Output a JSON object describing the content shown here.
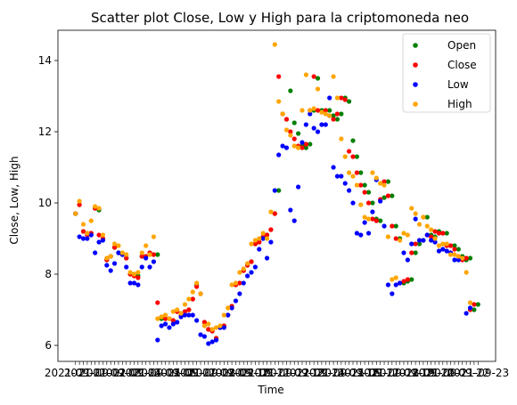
{
  "chart_data": {
    "type": "scatter",
    "title": "Scatter plot Close, Low y High para la criptomoneda neo",
    "xlabel": "Time",
    "ylabel": "Close, Low, High",
    "ylim": [
      5.55,
      14.85
    ],
    "yticks": [
      6,
      8,
      10,
      12,
      14
    ],
    "x_tick_labels": [
      "2021-09-01",
      "2021-09-02",
      "2021-09-03",
      "2021-09-04",
      "2021-09-05",
      "2021-09-06",
      "2021-09-07",
      "2021-09-08",
      "2021-09-09",
      "2021-09-10",
      "2021-09-11",
      "2021-09-12",
      "2021-09-13",
      "2021-09-14",
      "2021-09-15",
      "2021-09-16",
      "2021-09-17",
      "2021-09-18",
      "2021-09-19",
      "2021-09-20",
      "2021-09-21",
      "2021-09-22",
      "2021-09-23"
    ],
    "legend_position": "top-right",
    "grid": false,
    "series": [
      {
        "name": "Open",
        "color": "#008000",
        "values": [
          9.7,
          9.95,
          9.2,
          9.15,
          9.15,
          9.85,
          9.8,
          9.0,
          8.4,
          8.5,
          8.75,
          8.6,
          8.55,
          8.45,
          8.0,
          8.0,
          7.95,
          8.5,
          8.5,
          8.6,
          8.55,
          8.55,
          6.75,
          6.75,
          6.75,
          6.7,
          6.95,
          6.85,
          6.95,
          7.0,
          7.3,
          7.7,
          7.45,
          6.65,
          6.45,
          6.4,
          6.2,
          6.5,
          6.55,
          6.85,
          7.1,
          7.7,
          7.75,
          8.1,
          8.25,
          8.35,
          8.85,
          8.9,
          9.05,
          9.1,
          9.25,
          9.7,
          10.35,
          12.5,
          12.35,
          13.15,
          12.25,
          11.95,
          11.6,
          11.55,
          11.65,
          12.6,
          13.5,
          12.6,
          12.6,
          12.6,
          12.45,
          12.35,
          12.5,
          12.95,
          12.85,
          11.75,
          11.3,
          10.85,
          10.5,
          10.3,
          10.0,
          9.55,
          9.5,
          10.15,
          10.6,
          10.2,
          9.35,
          9.0,
          7.75,
          7.8,
          7.85,
          8.6,
          8.85,
          8.95,
          9.6,
          9.1,
          9.05,
          9.2,
          9.15,
          9.15,
          8.8,
          8.8,
          8.7,
          8.5,
          8.4,
          8.45,
          7.0,
          7.15
        ]
      },
      {
        "name": "Close",
        "color": "#ff0000",
        "values": [
          9.7,
          9.95,
          9.2,
          9.1,
          9.15,
          9.85,
          9.1,
          9.0,
          8.4,
          8.5,
          8.75,
          8.6,
          8.55,
          8.45,
          8.0,
          7.95,
          7.9,
          8.5,
          8.5,
          8.6,
          8.55,
          7.2,
          6.8,
          6.75,
          6.75,
          6.7,
          6.95,
          6.85,
          6.95,
          7.0,
          7.3,
          7.65,
          7.45,
          6.65,
          6.45,
          6.4,
          6.2,
          6.5,
          6.55,
          6.85,
          7.1,
          7.7,
          7.75,
          8.1,
          8.25,
          8.35,
          8.85,
          8.9,
          9.05,
          9.1,
          9.25,
          9.7,
          13.55,
          12.5,
          12.35,
          12.0,
          11.8,
          11.6,
          11.55,
          11.65,
          12.6,
          13.55,
          12.6,
          12.55,
          12.6,
          12.45,
          12.35,
          12.5,
          12.95,
          12.9,
          11.45,
          11.3,
          10.85,
          10.5,
          10.3,
          10.0,
          9.55,
          9.5,
          10.1,
          10.6,
          10.2,
          9.35,
          9.0,
          7.75,
          7.8,
          7.85,
          8.6,
          8.85,
          8.95,
          9.6,
          9.1,
          9.05,
          9.2,
          9.15,
          9.15,
          8.8,
          8.8,
          8.7,
          8.5,
          8.4,
          8.45,
          7.0,
          7.15
        ]
      },
      {
        "name": "Low",
        "color": "#0000ff",
        "values": [
          9.7,
          9.05,
          9.0,
          9.0,
          9.1,
          8.6,
          8.9,
          8.95,
          8.25,
          8.1,
          8.3,
          8.6,
          8.55,
          8.2,
          7.75,
          7.75,
          7.7,
          8.2,
          8.45,
          8.2,
          8.35,
          6.15,
          6.55,
          6.6,
          6.5,
          6.6,
          6.65,
          6.8,
          6.85,
          6.85,
          6.85,
          6.7,
          6.3,
          6.25,
          6.05,
          6.1,
          6.15,
          6.5,
          6.5,
          6.85,
          7.05,
          7.25,
          7.45,
          7.75,
          7.95,
          8.05,
          8.2,
          8.7,
          9.0,
          8.45,
          8.9,
          10.35,
          11.35,
          11.6,
          11.55,
          9.8,
          9.5,
          10.45,
          11.7,
          12.2,
          12.5,
          12.1,
          12.0,
          12.2,
          12.2,
          12.95,
          11.0,
          10.75,
          10.75,
          10.55,
          10.35,
          10.0,
          9.15,
          9.1,
          9.45,
          9.15,
          9.75,
          10.65,
          10.05,
          9.35,
          7.7,
          7.45,
          7.7,
          7.75,
          8.6,
          8.4,
          8.85,
          9.55,
          8.95,
          8.95,
          9.1,
          8.95,
          8.9,
          8.65,
          8.7,
          8.65,
          8.6,
          8.4,
          8.4,
          8.45,
          6.9,
          7.05
        ]
      },
      {
        "name": "High",
        "color": "#ffa500",
        "values": [
          9.7,
          10.05,
          9.4,
          9.15,
          9.5,
          9.9,
          9.85,
          9.1,
          8.45,
          8.5,
          8.85,
          8.8,
          8.6,
          8.55,
          8.05,
          8.0,
          8.05,
          8.6,
          8.8,
          8.55,
          9.05,
          6.75,
          6.8,
          6.85,
          6.75,
          6.95,
          7.0,
          6.9,
          7.15,
          7.3,
          7.5,
          7.75,
          7.45,
          6.55,
          6.6,
          6.45,
          6.5,
          6.55,
          6.85,
          7.05,
          7.7,
          7.75,
          8.05,
          8.15,
          8.3,
          8.85,
          8.95,
          9.0,
          9.15,
          9.0,
          9.75,
          14.45,
          12.85,
          12.5,
          12.05,
          11.9,
          11.6,
          11.55,
          12.6,
          13.6,
          12.6,
          12.65,
          13.2,
          12.55,
          12.5,
          12.45,
          13.55,
          12.95,
          11.8,
          11.3,
          10.85,
          10.75,
          10.5,
          9.95,
          9.6,
          9.55,
          10.85,
          10.7,
          10.55,
          10.5,
          9.05,
          7.85,
          7.9,
          8.95,
          9.15,
          9.1,
          9.85,
          9.7,
          9.4,
          9.6,
          9.35,
          9.25,
          9.0,
          8.8,
          8.85,
          8.85,
          8.55,
          8.55,
          8.5,
          8.45,
          8.05,
          7.2
        ]
      }
    ]
  }
}
